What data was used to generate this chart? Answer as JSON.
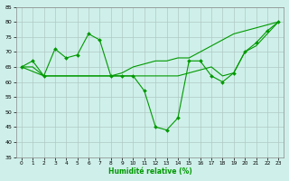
{
  "xlabel": "Humidité relative (%)",
  "background_color": "#cff0ea",
  "grid_color": "#b0c8c4",
  "line_color": "#009900",
  "xlim": [
    -0.5,
    23.5
  ],
  "ylim": [
    35,
    85
  ],
  "yticks": [
    35,
    40,
    45,
    50,
    55,
    60,
    65,
    70,
    75,
    80,
    85
  ],
  "xticks": [
    0,
    1,
    2,
    3,
    4,
    5,
    6,
    7,
    8,
    9,
    10,
    11,
    12,
    13,
    14,
    15,
    16,
    17,
    18,
    19,
    20,
    21,
    22,
    23
  ],
  "line1": {
    "x": [
      0,
      1,
      2,
      3,
      4,
      5,
      6,
      7,
      8,
      9,
      10,
      11,
      12,
      13,
      14,
      15,
      16,
      17,
      18,
      19,
      20,
      21,
      22,
      23
    ],
    "y": [
      65,
      67,
      62,
      71,
      68,
      69,
      76,
      74,
      62,
      62,
      62,
      57,
      45,
      44,
      48,
      67,
      67,
      62,
      60,
      63,
      70,
      73,
      77,
      80
    ]
  },
  "line2": {
    "x": [
      0,
      1,
      2,
      3,
      4,
      5,
      6,
      7,
      8,
      9,
      10,
      11,
      12,
      13,
      14,
      15,
      16,
      17,
      18,
      19,
      20,
      21,
      22,
      23
    ],
    "y": [
      65,
      65,
      62,
      62,
      62,
      62,
      62,
      62,
      62,
      62,
      62,
      62,
      62,
      62,
      62,
      63,
      64,
      65,
      62,
      63,
      70,
      72,
      76,
      80
    ]
  },
  "line3": {
    "x": [
      0,
      2,
      3,
      4,
      5,
      6,
      7,
      8,
      9,
      10,
      11,
      12,
      13,
      14,
      15,
      16,
      17,
      18,
      19,
      20,
      21,
      22,
      23
    ],
    "y": [
      65,
      62,
      62,
      62,
      62,
      62,
      62,
      62,
      63,
      65,
      66,
      67,
      67,
      68,
      68,
      70,
      72,
      74,
      76,
      77,
      78,
      79,
      80
    ]
  }
}
